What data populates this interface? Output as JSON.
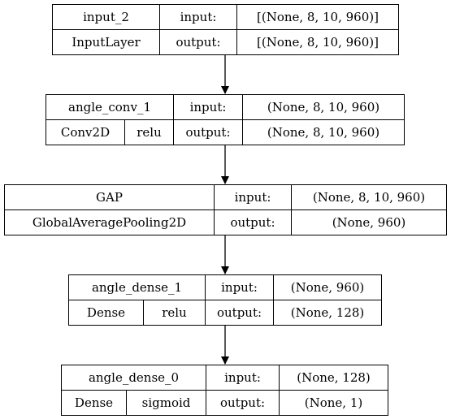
{
  "nodes": [
    {
      "name": "input_2",
      "type": "InputLayer",
      "activation": "",
      "in_label": "input:",
      "out_label": "output:",
      "input_shape": "[(None, 8, 10, 960)]",
      "output_shape": "[(None, 8, 10, 960)]"
    },
    {
      "name": "angle_conv_1",
      "type": "Conv2D",
      "activation": "relu",
      "in_label": "input:",
      "out_label": "output:",
      "input_shape": "(None, 8, 10, 960)",
      "output_shape": "(None, 8, 10, 960)"
    },
    {
      "name": "GAP",
      "type": "GlobalAveragePooling2D",
      "activation": "",
      "in_label": "input:",
      "out_label": "output:",
      "input_shape": "(None, 8, 10, 960)",
      "output_shape": "(None, 960)"
    },
    {
      "name": "angle_dense_1",
      "type": "Dense",
      "activation": "relu",
      "in_label": "input:",
      "out_label": "output:",
      "input_shape": "(None, 960)",
      "output_shape": "(None, 128)"
    },
    {
      "name": "angle_dense_0",
      "type": "Dense",
      "activation": "sigmoid",
      "in_label": "input:",
      "out_label": "output:",
      "input_shape": "(None, 128)",
      "output_shape": "(None, 1)"
    }
  ]
}
